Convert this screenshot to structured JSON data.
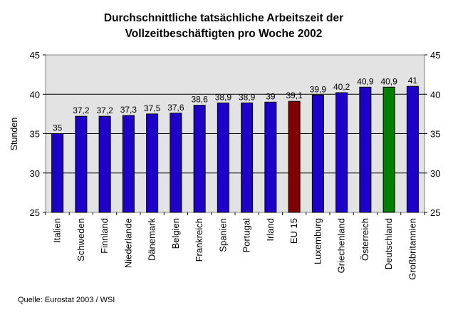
{
  "chart_data": {
    "type": "bar",
    "title": [
      "Durchschnittliche tatsächliche Arbeitszeit der",
      "Vollzeitbeschäftigten pro Woche 2002"
    ],
    "ylabel": "Stunden",
    "ylim": [
      25,
      45
    ],
    "yticks": [
      25,
      30,
      35,
      40,
      45
    ],
    "y_axis_both_sides": true,
    "grid": true,
    "plot_background": "#e3e3e3",
    "categories": [
      "Italien",
      "Schweden",
      "Finnland",
      "Niederlande",
      "Dänemark",
      "Belgien",
      "Frankreich",
      "Spanien",
      "Portugal",
      "Irland",
      "EU 15",
      "Luxemburg",
      "Griechenland",
      "Österreich",
      "Deutschland",
      "Großbritannien"
    ],
    "values": [
      35,
      37.2,
      37.2,
      37.3,
      37.5,
      37.6,
      38.6,
      38.9,
      38.9,
      39,
      39.1,
      39.9,
      40.2,
      40.9,
      40.9,
      41
    ],
    "value_labels": [
      "35",
      "37,2",
      "37,2",
      "37,3",
      "37,5",
      "37,6",
      "38,6",
      "38,9",
      "38,9",
      "39",
      "39,1",
      "39,9",
      "40,2",
      "40,9",
      "40,9",
      "41"
    ],
    "bar_colors": [
      "#1e00c8",
      "#1e00c8",
      "#1e00c8",
      "#1e00c8",
      "#1e00c8",
      "#1e00c8",
      "#1e00c8",
      "#1e00c8",
      "#1e00c8",
      "#1e00c8",
      "#820000",
      "#1e00c8",
      "#1e00c8",
      "#1e00c8",
      "#008000",
      "#1e00c8"
    ],
    "source": "Quelle: Eurostat 2003 / WSI"
  }
}
